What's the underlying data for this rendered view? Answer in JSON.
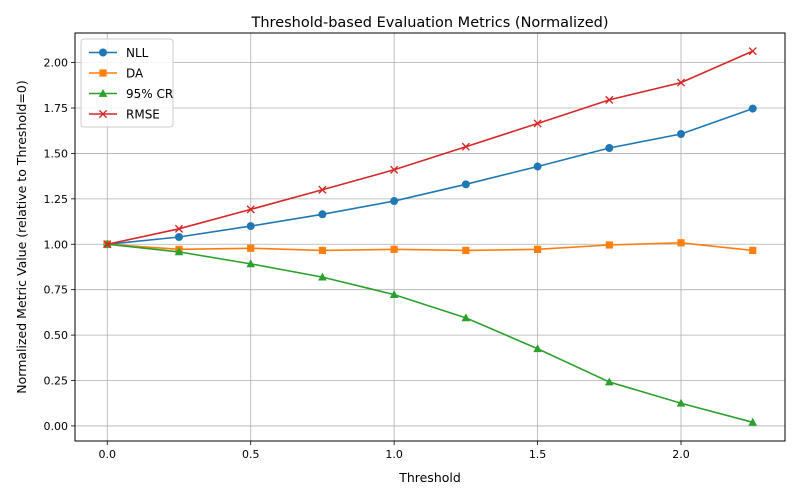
{
  "chart_data": {
    "type": "line",
    "title": "Threshold-based Evaluation Metrics (Normalized)",
    "xlabel": "Threshold",
    "ylabel": "Normalized Metric Value (relative to Threshold=0)",
    "x": [
      0.0,
      0.25,
      0.5,
      0.75,
      1.0,
      1.25,
      1.5,
      1.75,
      2.0,
      2.25
    ],
    "xlim": [
      -0.1125,
      2.3625
    ],
    "ylim": [
      -0.083,
      2.163
    ],
    "xticks": [
      0.0,
      0.5,
      1.0,
      1.5,
      2.0
    ],
    "xtick_labels": [
      "0.0",
      "0.5",
      "1.0",
      "1.5",
      "2.0"
    ],
    "yticks": [
      0.0,
      0.25,
      0.5,
      0.75,
      1.0,
      1.25,
      1.5,
      1.75,
      2.0
    ],
    "ytick_labels": [
      "0.00",
      "0.25",
      "0.50",
      "0.75",
      "1.00",
      "1.25",
      "1.50",
      "1.75",
      "2.00"
    ],
    "grid": true,
    "legend_position": "upper-left",
    "series": [
      {
        "name": "NLL",
        "color": "#1f77b4",
        "marker": "circle",
        "values": [
          1.0,
          1.04,
          1.1,
          1.165,
          1.238,
          1.33,
          1.428,
          1.53,
          1.607,
          1.747
        ]
      },
      {
        "name": "DA",
        "color": "#ff7f0e",
        "marker": "square",
        "values": [
          1.0,
          0.972,
          0.978,
          0.966,
          0.972,
          0.966,
          0.972,
          0.996,
          1.008,
          0.966
        ]
      },
      {
        "name": "95% CR",
        "color": "#2ca02c",
        "marker": "triangle",
        "values": [
          1.0,
          0.958,
          0.892,
          0.819,
          0.723,
          0.595,
          0.425,
          0.242,
          0.125,
          0.02
        ]
      },
      {
        "name": "RMSE",
        "color": "#d62728",
        "marker": "x",
        "values": [
          1.0,
          1.085,
          1.192,
          1.3,
          1.41,
          1.537,
          1.665,
          1.795,
          1.89,
          2.063
        ]
      }
    ]
  }
}
